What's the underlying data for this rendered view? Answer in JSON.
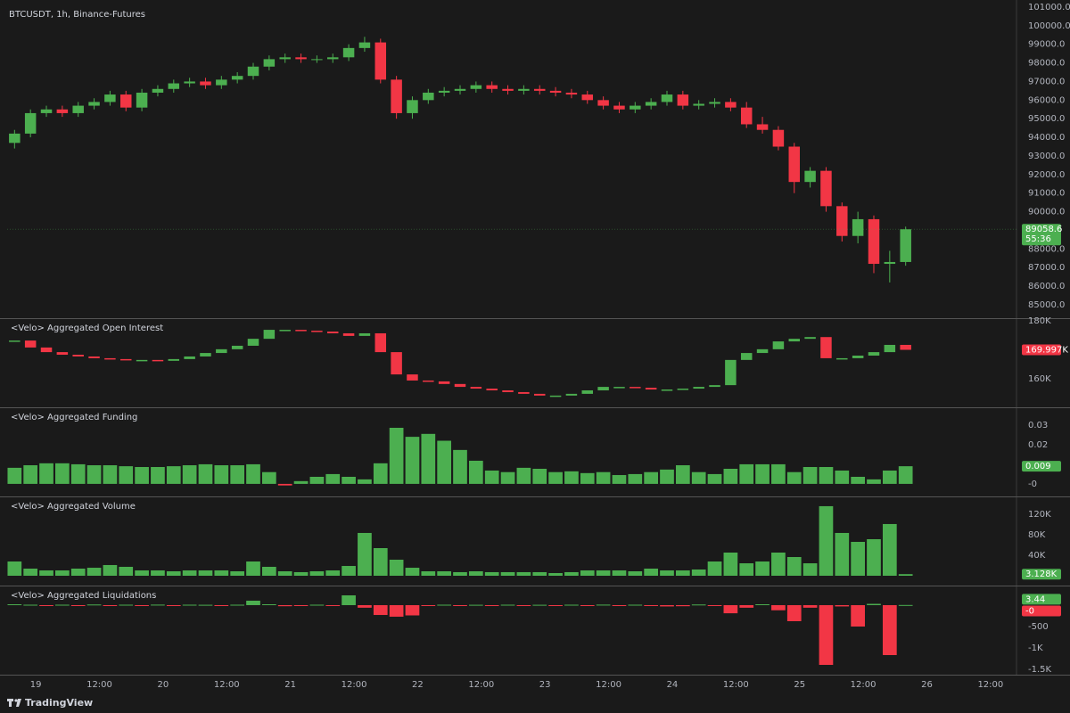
{
  "header": {
    "symbol_label": "BTCUSDT, 1h, Binance-Futures"
  },
  "footer": {
    "brand": "TradingView"
  },
  "time_axis": {
    "x": [
      -4,
      -1,
      2,
      5,
      8,
      11,
      14,
      17,
      20,
      23,
      26,
      29,
      32,
      35,
      38,
      41,
      44,
      47,
      50,
      53,
      56,
      59,
      62,
      65,
      68,
      71,
      74,
      77,
      80,
      83,
      86,
      89,
      92,
      95,
      98,
      101,
      104,
      107,
      110,
      113,
      116,
      119,
      122,
      125,
      128,
      131,
      134,
      137,
      140,
      143,
      146,
      149,
      152,
      155,
      158,
      161,
      164
    ],
    "xlim": [
      -5.4,
      184.9
    ],
    "xticks": [
      {
        "value": 0,
        "label": "19"
      },
      {
        "value": 12,
        "label": "12:00"
      },
      {
        "value": 24,
        "label": "20"
      },
      {
        "value": 36,
        "label": "12:00"
      },
      {
        "value": 48,
        "label": "21"
      },
      {
        "value": 60,
        "label": "12:00"
      },
      {
        "value": 72,
        "label": "22"
      },
      {
        "value": 84,
        "label": "12:00"
      },
      {
        "value": 96,
        "label": "23"
      },
      {
        "value": 108,
        "label": "12:00"
      },
      {
        "value": 120,
        "label": "24"
      },
      {
        "value": 132,
        "label": "12:00"
      },
      {
        "value": 144,
        "label": "25"
      },
      {
        "value": 156,
        "label": "12:00"
      },
      {
        "value": 168,
        "label": "26"
      },
      {
        "value": 180,
        "label": "12:00"
      }
    ]
  },
  "chart_data": [
    {
      "type": "candlestick",
      "up_color": "#4caf50",
      "down_color": "#f23645",
      "open": [
        93700,
        94200,
        95300,
        95500,
        95300,
        95700,
        95900,
        96300,
        95600,
        96400,
        96600,
        96900,
        97000,
        96800,
        97100,
        97300,
        97800,
        98200,
        98300,
        98200,
        98200,
        98300,
        98800,
        99100,
        97100,
        95300,
        96000,
        96400,
        96500,
        96600,
        96800,
        96600,
        96500,
        96600,
        96500,
        96400,
        96300,
        96000,
        95700,
        95500,
        95700,
        95900,
        96300,
        95700,
        95800,
        95900,
        95600,
        94700,
        94400,
        93500,
        91600,
        92200,
        90300,
        88700,
        89600,
        87200,
        87300
      ],
      "high": [
        94400,
        95500,
        95700,
        95700,
        95900,
        96100,
        96500,
        96500,
        96600,
        96800,
        97100,
        97200,
        97200,
        97300,
        97500,
        98000,
        98400,
        98500,
        98500,
        98400,
        98500,
        99000,
        99400,
        99300,
        97300,
        96200,
        96600,
        96700,
        96800,
        97000,
        97000,
        96800,
        96800,
        96800,
        96700,
        96600,
        96500,
        96200,
        95900,
        95900,
        96100,
        96500,
        96500,
        96000,
        96100,
        96100,
        95900,
        95100,
        94600,
        93700,
        92400,
        92400,
        90500,
        90000,
        89800,
        87900,
        89200
      ],
      "low": [
        93400,
        94000,
        95100,
        95100,
        95100,
        95500,
        95700,
        95400,
        95400,
        96200,
        96400,
        96700,
        96600,
        96600,
        96900,
        97100,
        97600,
        98000,
        98000,
        98000,
        98000,
        98100,
        98600,
        96900,
        95000,
        95000,
        95800,
        96200,
        96300,
        96400,
        96400,
        96300,
        96300,
        96300,
        96200,
        96100,
        95800,
        95500,
        95300,
        95300,
        95500,
        95700,
        95500,
        95500,
        95600,
        95400,
        94500,
        94200,
        93300,
        91000,
        91300,
        90000,
        88400,
        88300,
        86700,
        86200,
        87100
      ],
      "close": [
        94200,
        95300,
        95500,
        95300,
        95700,
        95900,
        96300,
        95600,
        96400,
        96600,
        96900,
        97000,
        96800,
        97100,
        97300,
        97800,
        98200,
        98300,
        98200,
        98200,
        98300,
        98800,
        99100,
        97100,
        95300,
        96000,
        96400,
        96500,
        96600,
        96800,
        96600,
        96500,
        96600,
        96500,
        96400,
        96300,
        96000,
        95700,
        95500,
        95700,
        95900,
        96300,
        95700,
        95800,
        95900,
        95600,
        94700,
        94400,
        93500,
        91600,
        92200,
        90300,
        88700,
        89600,
        87200,
        87300,
        89058.6
      ],
      "ylim": [
        84280,
        101380
      ],
      "yticks": [
        {
          "value": 85000,
          "label": "85000.0"
        },
        {
          "value": 86000,
          "label": "86000.0"
        },
        {
          "value": 87000,
          "label": "87000.0"
        },
        {
          "value": 88000,
          "label": "88000.0"
        },
        {
          "value": 90000,
          "label": "90000.0"
        },
        {
          "value": 91000,
          "label": "91000.0"
        },
        {
          "value": 92000,
          "label": "92000.0"
        },
        {
          "value": 93000,
          "label": "93000.0"
        },
        {
          "value": 94000,
          "label": "94000.0"
        },
        {
          "value": 95000,
          "label": "95000.0"
        },
        {
          "value": 96000,
          "label": "96000.0"
        },
        {
          "value": 97000,
          "label": "97000.0"
        },
        {
          "value": 98000,
          "label": "98000.0"
        },
        {
          "value": 99000,
          "label": "99000.0"
        },
        {
          "value": 100000,
          "label": "100000.0"
        },
        {
          "value": 101000,
          "label": "101000.0"
        }
      ],
      "tags": [
        {
          "value": 89058.6,
          "countdown": "55:36",
          "color": "#4caf50"
        }
      ]
    },
    {
      "type": "step-candle",
      "title": "<Velo> Aggregated Open Interest",
      "up_color": "#4caf50",
      "down_color": "#f23645",
      "values": [
        173200,
        170800,
        169200,
        168300,
        167700,
        167100,
        166800,
        166500,
        166500,
        166200,
        166800,
        167700,
        168900,
        170200,
        171400,
        173800,
        176900,
        176900,
        176600,
        176300,
        175700,
        174800,
        175700,
        169200,
        161500,
        159400,
        159100,
        158200,
        157200,
        156600,
        156000,
        155400,
        154800,
        154200,
        154200,
        154800,
        156000,
        157200,
        157200,
        156900,
        156300,
        156300,
        156600,
        157200,
        157800,
        166500,
        168900,
        170200,
        172900,
        173800,
        174400,
        167100,
        167100,
        168000,
        169200,
        171700,
        169997
      ],
      "ylim": [
        150150,
        180615
      ],
      "yticks": [
        {
          "value": 160000,
          "label": "160K"
        },
        {
          "value": 180000,
          "label": "180K"
        }
      ],
      "tags": [
        {
          "value": 169997,
          "label": "169.997K",
          "color": "#f23645"
        }
      ]
    },
    {
      "type": "bar",
      "title": "<Velo> Aggregated Funding",
      "positive_color": "#4caf50",
      "negative_color": "#f23645",
      "values": [
        0.0082,
        0.0095,
        0.0105,
        0.0105,
        0.01,
        0.0095,
        0.0095,
        0.009,
        0.0086,
        0.0086,
        0.009,
        0.0095,
        0.01,
        0.0095,
        0.0095,
        0.01,
        0.006,
        -0.0008,
        0.0014,
        0.0036,
        0.005,
        0.0036,
        0.0023,
        0.0105,
        0.0286,
        0.024,
        0.0255,
        0.022,
        0.0173,
        0.0118,
        0.0068,
        0.006,
        0.0082,
        0.0077,
        0.006,
        0.0064,
        0.0055,
        0.006,
        0.0045,
        0.005,
        0.006,
        0.0073,
        0.0095,
        0.006,
        0.005,
        0.0077,
        0.01,
        0.01,
        0.01,
        0.006,
        0.0086,
        0.0086,
        0.0068,
        0.0036,
        0.0023,
        0.0068,
        0.009
      ],
      "ylim": [
        -0.0064,
        0.0386
      ],
      "yticks": [
        {
          "value": 0,
          "label": "-0"
        },
        0.02,
        0.03
      ],
      "tags": [
        {
          "value": 0.009,
          "color": "#4caf50"
        }
      ]
    },
    {
      "type": "bar",
      "title": "<Velo> Aggregated Volume",
      "positive_color": "#4caf50",
      "negative_color": "#f23645",
      "values": [
        27800,
        13900,
        10400,
        10400,
        13900,
        15600,
        20900,
        17400,
        10400,
        10400,
        8700,
        10400,
        10400,
        10400,
        8700,
        27800,
        17400,
        8700,
        7000,
        8700,
        10400,
        19100,
        83500,
        53900,
        31300,
        15600,
        8700,
        8700,
        7000,
        8700,
        7000,
        7000,
        7000,
        7000,
        5200,
        7000,
        10400,
        10400,
        10400,
        8700,
        13900,
        10400,
        10400,
        12200,
        27800,
        45200,
        24300,
        27800,
        45200,
        36500,
        24300,
        135700,
        83500,
        66100,
        71300,
        100900,
        3128
      ],
      "ylim": [
        -19130,
        153000
      ],
      "yticks": [
        {
          "value": 40000,
          "label": "40K"
        },
        {
          "value": 80000,
          "label": "80K"
        },
        {
          "value": 120000,
          "label": "120K"
        }
      ],
      "tags": [
        {
          "value": 3128,
          "label": "3.128K",
          "color": "#4caf50"
        }
      ]
    },
    {
      "type": "bar",
      "title": "<Velo> Aggregated Liquidations",
      "positive_color": "#4caf50",
      "negative_color": "#f23645",
      "values": [
        20,
        10,
        -15,
        10,
        -10,
        15,
        -20,
        10,
        -10,
        12,
        -10,
        10,
        8,
        -8,
        10,
        104,
        20,
        -25,
        -15,
        10,
        -20,
        229,
        -60,
        -230,
        -270,
        -240,
        -20,
        10,
        -10,
        8,
        -10,
        10,
        -8,
        8,
        -8,
        10,
        -10,
        12,
        -12,
        10,
        -15,
        -30,
        -25,
        15,
        -20,
        -190,
        -60,
        20,
        -120,
        -375,
        -60,
        -1396,
        -30,
        -500,
        30,
        -1167,
        3.44
      ],
      "ylim": [
        -1625,
        437
      ],
      "yticks": [
        -500,
        {
          "value": -1000,
          "label": "-1K"
        },
        {
          "value": -1500,
          "label": "-1.5K"
        }
      ],
      "tags": [
        {
          "value": 3.44,
          "color": "#4caf50"
        },
        {
          "value": 0,
          "label": "-0",
          "color": "#f23645"
        }
      ]
    }
  ]
}
